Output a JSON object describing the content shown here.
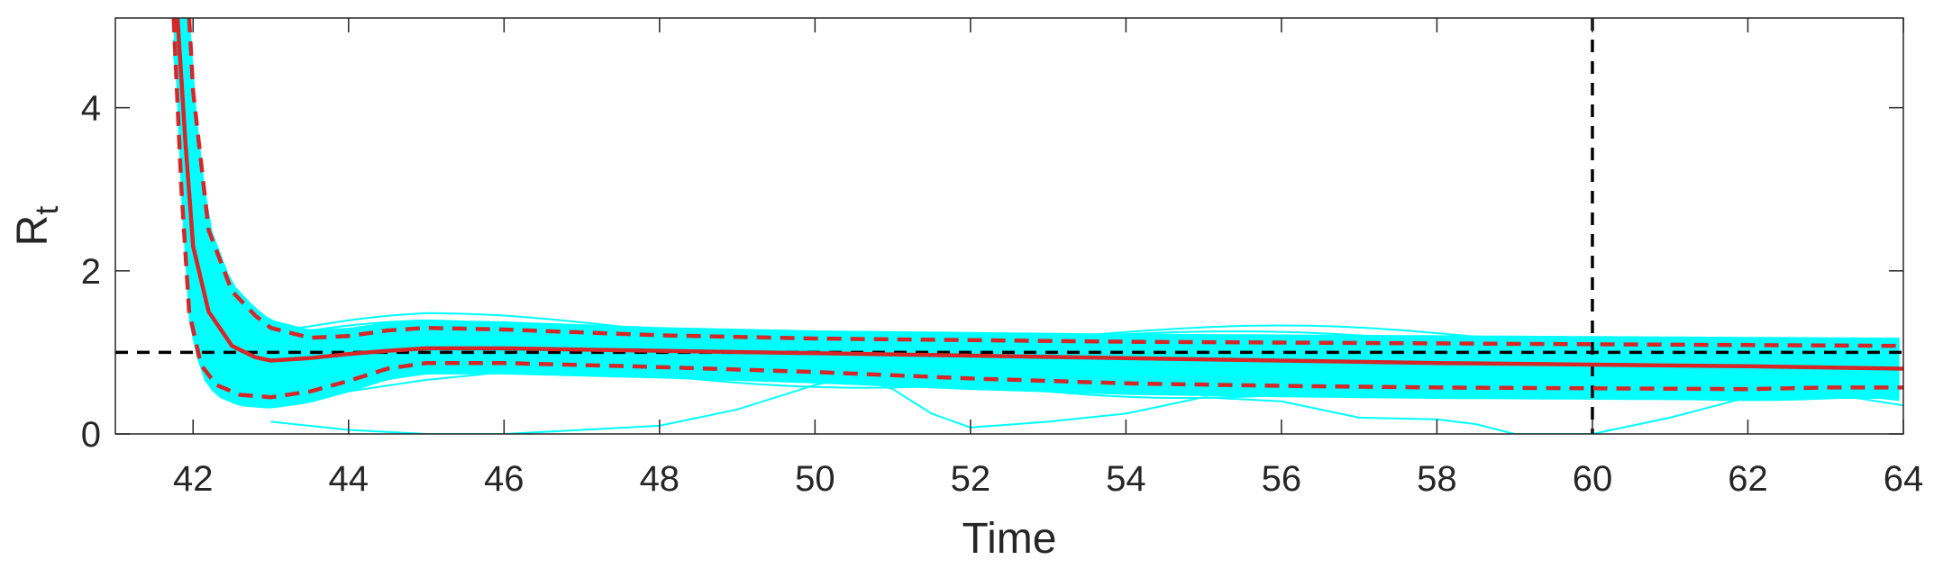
{
  "chart_data": {
    "type": "line",
    "title": "",
    "xlabel": "Time",
    "ylabel": "R",
    "ylabel_subscript": "t",
    "xlim": [
      41,
      64
    ],
    "ylim": [
      0,
      5.1
    ],
    "grid": false,
    "legend": "none",
    "x_ticks": [
      42,
      44,
      46,
      48,
      50,
      52,
      54,
      56,
      58,
      60,
      62,
      64
    ],
    "y_ticks": [
      0,
      2,
      4
    ],
    "colors": {
      "ensemble": "#00ffff",
      "median": "#d62728",
      "bounds": "#d62728",
      "reference": "#000000",
      "axes": "#262626"
    },
    "reference_lines": {
      "horizontal_y": 1,
      "vertical_x": 60
    },
    "series": [
      {
        "role": "median",
        "style": "solid",
        "points": [
          [
            41.8,
            5.1
          ],
          [
            41.9,
            3.6
          ],
          [
            42.0,
            2.3
          ],
          [
            42.2,
            1.5
          ],
          [
            42.5,
            1.08
          ],
          [
            42.8,
            0.94
          ],
          [
            43.0,
            0.9
          ],
          [
            43.5,
            0.93
          ],
          [
            44.0,
            0.98
          ],
          [
            44.5,
            1.02
          ],
          [
            45.0,
            1.05
          ],
          [
            46.0,
            1.05
          ],
          [
            48.0,
            1.02
          ],
          [
            50.0,
            0.99
          ],
          [
            52.0,
            0.96
          ],
          [
            54.0,
            0.93
          ],
          [
            56.0,
            0.9
          ],
          [
            58.0,
            0.87
          ],
          [
            60.0,
            0.85
          ],
          [
            62.0,
            0.83
          ],
          [
            64.0,
            0.8
          ]
        ]
      },
      {
        "role": "upper",
        "style": "dashed",
        "points": [
          [
            41.95,
            5.1
          ],
          [
            42.0,
            4.2
          ],
          [
            42.2,
            2.5
          ],
          [
            42.5,
            1.75
          ],
          [
            42.8,
            1.45
          ],
          [
            43.0,
            1.3
          ],
          [
            43.5,
            1.18
          ],
          [
            44.0,
            1.2
          ],
          [
            44.5,
            1.27
          ],
          [
            45.0,
            1.3
          ],
          [
            46.0,
            1.28
          ],
          [
            48.0,
            1.21
          ],
          [
            50.0,
            1.17
          ],
          [
            52.0,
            1.15
          ],
          [
            54.0,
            1.13
          ],
          [
            56.0,
            1.12
          ],
          [
            58.0,
            1.11
          ],
          [
            60.0,
            1.1
          ],
          [
            62.0,
            1.09
          ],
          [
            64.0,
            1.08
          ]
        ]
      },
      {
        "role": "lower",
        "style": "dashed",
        "points": [
          [
            41.75,
            5.1
          ],
          [
            41.85,
            3.0
          ],
          [
            41.95,
            1.5
          ],
          [
            42.1,
            0.85
          ],
          [
            42.3,
            0.6
          ],
          [
            42.6,
            0.48
          ],
          [
            43.0,
            0.45
          ],
          [
            43.5,
            0.52
          ],
          [
            44.0,
            0.65
          ],
          [
            44.5,
            0.8
          ],
          [
            45.0,
            0.87
          ],
          [
            46.0,
            0.87
          ],
          [
            48.0,
            0.82
          ],
          [
            50.0,
            0.76
          ],
          [
            52.0,
            0.68
          ],
          [
            54.0,
            0.62
          ],
          [
            56.0,
            0.59
          ],
          [
            58.0,
            0.57
          ],
          [
            60.0,
            0.56
          ],
          [
            62.0,
            0.55
          ],
          [
            63.0,
            0.57
          ],
          [
            64.0,
            0.57
          ]
        ]
      },
      {
        "role": "outlier-trajectory",
        "style": "thin",
        "points": [
          [
            43.0,
            0.15
          ],
          [
            44.0,
            0.05
          ],
          [
            45.0,
            0.0
          ],
          [
            46.0,
            0.0
          ],
          [
            47.0,
            0.05
          ],
          [
            48.0,
            0.1
          ],
          [
            49.0,
            0.3
          ],
          [
            50.0,
            0.6
          ],
          [
            50.5,
            0.7
          ],
          [
            51.0,
            0.55
          ],
          [
            51.5,
            0.25
          ],
          [
            52.0,
            0.08
          ],
          [
            53.0,
            0.15
          ],
          [
            54.0,
            0.25
          ],
          [
            55.0,
            0.45
          ],
          [
            56.0,
            0.4
          ],
          [
            57.0,
            0.2
          ],
          [
            58.0,
            0.18
          ],
          [
            58.5,
            0.12
          ],
          [
            59.0,
            0.0
          ],
          [
            60.0,
            0.0
          ],
          [
            61.0,
            0.2
          ],
          [
            62.0,
            0.45
          ],
          [
            63.0,
            0.5
          ],
          [
            64.0,
            0.35
          ]
        ]
      }
    ]
  }
}
